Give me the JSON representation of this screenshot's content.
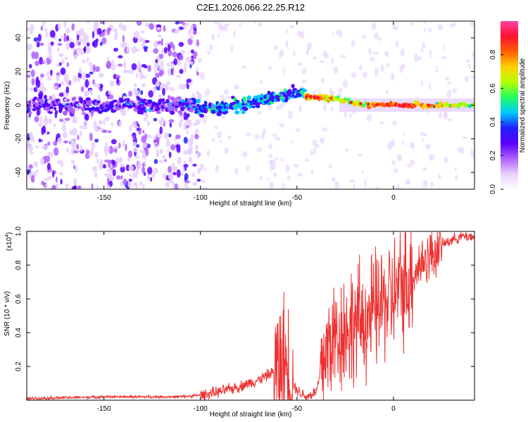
{
  "title": "C2E1.2026.066.22.25.R12",
  "chart_data": [
    {
      "type": "heatmap",
      "title": "C2E1.2026.066.22.25.R12",
      "xlabel": "Height of straight line (km)",
      "ylabel": "Frequency (Hz)",
      "xlim": [
        -190,
        42
      ],
      "ylim": [
        -50,
        50
      ],
      "xticks": [
        -150,
        -100,
        -50,
        0
      ],
      "yticks": [
        -40,
        -20,
        0,
        20,
        40
      ],
      "colorbar": {
        "label": "Normalized spectral amplitude",
        "range": [
          0,
          1
        ],
        "ticks": [
          0.0,
          0.2,
          0.4,
          0.6,
          0.8
        ],
        "tick_labels": [
          "0.0",
          "0.2",
          "0.4",
          "0.6",
          "0.8"
        ],
        "colormap": [
          "#ffffff",
          "#e6d0ff",
          "#b060ff",
          "#5a00ff",
          "#2020ff",
          "#00c8ff",
          "#20ff60",
          "#b4ff00",
          "#ffd000",
          "#ff6000",
          "#ff1030",
          "#ff40a0"
        ]
      },
      "signal_track": [
        {
          "x": -190,
          "freq": 0,
          "amp": 0.22
        },
        {
          "x": -150,
          "freq": 0,
          "amp": 0.25
        },
        {
          "x": -110,
          "freq": 0,
          "amp": 0.25
        },
        {
          "x": -100,
          "freq": -2,
          "amp": 0.35
        },
        {
          "x": -80,
          "freq": 0,
          "amp": 0.42
        },
        {
          "x": -60,
          "freq": 5,
          "amp": 0.4
        },
        {
          "x": -48,
          "freq": 8,
          "amp": 0.38
        },
        {
          "x": -45,
          "freq": 5,
          "amp": 0.8
        },
        {
          "x": -30,
          "freq": 4,
          "amp": 0.7
        },
        {
          "x": -20,
          "freq": 1,
          "amp": 0.6
        },
        {
          "x": 0,
          "freq": 0,
          "amp": 0.85
        },
        {
          "x": 42,
          "freq": 0,
          "amp": 0.55
        }
      ]
    },
    {
      "type": "line",
      "xlabel": "Height of straight line (km)",
      "ylabel": "SNR (10 * v/v)",
      "y_scale_label": "(x10",
      "y_scale_exp": "4",
      "xlim": [
        -190,
        42
      ],
      "ylim": [
        0,
        1.0
      ],
      "xticks": [
        -150,
        -100,
        -50,
        0
      ],
      "yticks": [
        0.2,
        0.4,
        0.6,
        0.8,
        1.0
      ],
      "ytick_labels": [
        "0.2",
        "0.4",
        "0.6",
        "0.8",
        "1.0"
      ],
      "series": [
        {
          "name": "SNR",
          "color": "#ee3030",
          "x": [
            -190,
            -170,
            -150,
            -130,
            -110,
            -100,
            -90,
            -80,
            -70,
            -65,
            -60,
            -58,
            -55,
            -52,
            -50,
            -45,
            -40,
            -38,
            -35,
            -30,
            -25,
            -20,
            -15,
            -10,
            -5,
            0,
            5,
            10,
            15,
            20,
            25,
            30,
            35,
            42
          ],
          "y": [
            0.01,
            0.015,
            0.02,
            0.02,
            0.02,
            0.03,
            0.05,
            0.08,
            0.12,
            0.15,
            0.18,
            0.22,
            0.2,
            0.1,
            0.06,
            0.02,
            0.05,
            0.15,
            0.3,
            0.38,
            0.42,
            0.45,
            0.48,
            0.52,
            0.58,
            0.62,
            0.68,
            0.75,
            0.82,
            0.87,
            0.92,
            0.95,
            0.97,
            0.97
          ]
        }
      ],
      "noise_bands": [
        {
          "x0": -62,
          "x1": -52,
          "amp": 0.38
        },
        {
          "x0": -38,
          "x1": 10,
          "amp": 0.32
        },
        {
          "x0": 10,
          "x1": 25,
          "amp": 0.15
        }
      ]
    }
  ]
}
